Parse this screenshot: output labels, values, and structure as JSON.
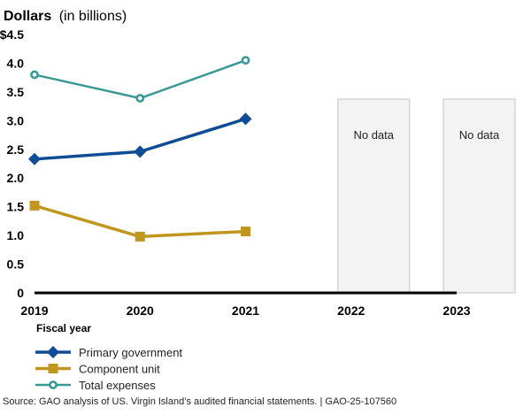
{
  "chart_data": {
    "type": "line",
    "title": "Dollars",
    "title_suffix": "(in billions)",
    "xlabel": "Fiscal year",
    "ylabel": "Dollars (in billions)",
    "categories": [
      "2019",
      "2020",
      "2021",
      "2022",
      "2023"
    ],
    "ylim": [
      0,
      4.5
    ],
    "yticks": [
      {
        "value": 0,
        "label": "0"
      },
      {
        "value": 0.5,
        "label": "0.5"
      },
      {
        "value": 1.0,
        "label": "1.0"
      },
      {
        "value": 1.5,
        "label": "1.5"
      },
      {
        "value": 2.0,
        "label": "2.0"
      },
      {
        "value": 2.5,
        "label": "2.5"
      },
      {
        "value": 3.0,
        "label": "3.0"
      },
      {
        "value": 3.5,
        "label": "3.5"
      },
      {
        "value": 4.0,
        "label": "4.0"
      },
      {
        "value": 4.5,
        "label": "$4.5"
      }
    ],
    "grid": false,
    "legend_position": "bottom-left",
    "series": [
      {
        "name": "Primary government",
        "color": "#0f4c96",
        "marker": "diamond",
        "values": [
          2.33,
          2.46,
          3.03,
          null,
          null
        ]
      },
      {
        "name": "Component unit",
        "color": "#c0961f",
        "marker": "square",
        "values": [
          1.52,
          0.98,
          1.07,
          null,
          null
        ]
      },
      {
        "name": "Total expenses",
        "color": "#3a9994",
        "marker": "open-circle",
        "values": [
          3.8,
          3.39,
          4.05,
          null,
          null
        ]
      }
    ],
    "no_data_periods": [
      {
        "category": "2022",
        "label": "No data"
      },
      {
        "category": "2023",
        "label": "No data"
      }
    ]
  },
  "source": "Source: GAO analysis of US. Virgin Island’s audited financial statements.  |  GAO-25-107560"
}
